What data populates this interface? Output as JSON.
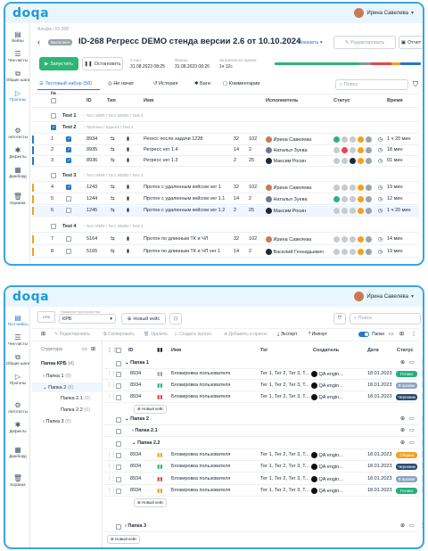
{
  "s1": {
    "logo": "doqa",
    "user": "Ирина Савелева",
    "sidebar": [
      "Бейзы",
      "Чек-листы",
      "Общие шаги",
      "Прогоны",
      "Автотесты",
      "Дефекты",
      "Дашборд",
      "Корзина"
    ],
    "breadcrumb": "Альфа / ID-268",
    "status": "Выполнен",
    "title": "ID-268 Регресс DEMO стенда версии 2.6 от 10.10.2024",
    "show_label": "Показать",
    "edit_label": "Редактировать",
    "report_label": "Отчет",
    "run_label": "Запустить",
    "stop_label": "Остановить",
    "start_label": "Старт:",
    "start_val": "31.08.2023 08:25",
    "finish_label": "Финиш:",
    "finish_val": "31.08.2023 08:26",
    "spent_label": "Затраченное время:",
    "spent_val": "1ч 12с",
    "tabs": [
      "Тестовый набор (58)",
      "Не начат",
      "История",
      "Баги",
      "Комментарии"
    ],
    "search_ph": "Поиск",
    "headers": {
      "num": "№",
      "id": "ID",
      "type": "Тип",
      "name": "Имя",
      "exec": "Исполнитель",
      "status": "Статус",
      "time": "Время"
    },
    "groups": [
      {
        "label": "Test 1",
        "sub": "Тест ИМЯ / Тест ИМЯ2 / Test 3"
      },
      {
        "label": "Test 2",
        "sub": "Прогоны / Space1 / Test 2"
      },
      {
        "label": "Test 3",
        "sub": "Тест ИМЯ / Тест ИМЯ2 / Test 3"
      },
      {
        "label": "Test 4",
        "sub": "Тест ИМЯ / Тест ИМЯ2 / Test 3"
      }
    ],
    "rows": [
      {
        "n": "1",
        "id": "8934",
        "name": "Регесс после задачи 1228",
        "a": "32",
        "b": "102",
        "exec": "Ирина Савелева",
        "time": "1 ч 20 мин"
      },
      {
        "n": "2",
        "id": "8935",
        "name": "Регресс ver 1.4",
        "a": "14",
        "b": "2",
        "exec": "Наталья Зуева",
        "time": "18 мин"
      },
      {
        "n": "3",
        "id": "8936",
        "name": "Регресс ver 1.3",
        "a": "2",
        "b": "25",
        "exec": "Максим Росин",
        "time": "01 мин"
      },
      {
        "n": "4",
        "id": "1243",
        "name": "Протон с удаленным кейсом ver 1",
        "a": "32",
        "b": "102",
        "exec": "Ирина Савелева",
        "time": "19 мин"
      },
      {
        "n": "5",
        "id": "1244",
        "name": "Протон с удаленным кейсом ver 1.1",
        "a": "14",
        "b": "2",
        "exec": "Наталья Зуева",
        "time": "12 мин"
      },
      {
        "n": "6",
        "id": "1245",
        "name": "Протон с удаленным кейсом ver 1.2",
        "a": "2",
        "b": "25",
        "exec": "Максим Росин",
        "time": "1 ч 20 мин"
      },
      {
        "n": "7",
        "id": "5164",
        "name": "Протон по длинным ТК и ЧЛ",
        "a": "32",
        "b": "102",
        "exec": "Ирина Савелева",
        "time": "14 мин"
      },
      {
        "n": "8",
        "id": "5165",
        "name": "Протон по длинным ТК и ЧЛ ver 1",
        "a": "14",
        "b": "2",
        "exec": "Василий Геннадьевич",
        "time": "19 мин"
      }
    ]
  },
  "s2": {
    "logo": "doqa",
    "user": "Ирина Савелева",
    "sidebar": [
      "Тест-кейсы",
      "Чек-листы",
      "Общие шаги",
      "Прогоны",
      "Автотесты",
      "Дефекты",
      "Дашборд",
      "Корзина"
    ],
    "project_hint": "Название пространства",
    "project": "КРБ",
    "new_case": "Новый кейс",
    "search_ph": "Поиск",
    "toolbar": [
      "Редактировать",
      "Скопировать",
      "Удалить",
      "Создать прогон",
      "Добавить в прогон",
      "Экспорт",
      "Импорт"
    ],
    "folders_toggle": "Папки",
    "structure": "Структура",
    "tree": [
      {
        "label": "Папка КРБ",
        "count": "(4)"
      },
      {
        "label": "Папка 1",
        "count": "(8)"
      },
      {
        "label": "Папка 2",
        "count": "(8)"
      },
      {
        "label": "Папка 2.1",
        "count": "(0)"
      },
      {
        "label": "Папка 2.2",
        "count": "(0)"
      },
      {
        "label": "Папка 3",
        "count": "(8)"
      }
    ],
    "headers": {
      "id": "ID",
      "name": "Имя",
      "tag": "Тег",
      "creator": "Создатель",
      "date": "Дата",
      "status": "Статус"
    },
    "folders": [
      "Папка 1",
      "Папка 2",
      "Папка 2.1",
      "Папка 2.2",
      "Папка 3"
    ],
    "new_case_small": "Новый кейс",
    "rows": [
      {
        "id": "8934",
        "name": "Блокировка пользователя",
        "tag": "Тег 1, Тег 2, Тег 3, Т...",
        "creator": "QA engin...",
        "date": "18.01.2023",
        "status": "Готово",
        "color": "#22b07d"
      },
      {
        "id": "8934",
        "name": "Блокировка пользователя",
        "tag": "Тег 1, Тег 2, Тег 3, Т...",
        "creator": "QA engin...",
        "date": "18.01.2023",
        "status": "В архиве",
        "color": "#8ea3c6"
      },
      {
        "id": "8934",
        "name": "Блокировка пользователя",
        "tag": "Тег 1, Тег 2, Тег 3, Т...",
        "creator": "QA engin...",
        "date": "18.01.2023",
        "status": "Черновик",
        "color": "#2c4a6e"
      },
      {
        "id": "8934",
        "name": "Блокировка пользователя",
        "tag": "Тег 1, Тег 2, Тег 3, Т...",
        "creator": "QA engin...",
        "date": "18.01.2023",
        "status": "Сборка",
        "color": "#f3a11c"
      },
      {
        "id": "8934",
        "name": "Блокировка пользователя",
        "tag": "Тег 1, Тег 2, Тег 3, Т...",
        "creator": "QA engin...",
        "date": "18.01.2023",
        "status": "Черновик",
        "color": "#2c4a6e"
      },
      {
        "id": "8934",
        "name": "Блокировка пользователя",
        "tag": "Тег 1, Тег 2, Тег 3, Т...",
        "creator": "QA engin...",
        "date": "18.01.2023",
        "status": "В архиве",
        "color": "#8ea3c6"
      },
      {
        "id": "8934",
        "name": "Блокировка пользователя",
        "tag": "Тег 1, Тег 2, Тег 3, Т...",
        "creator": "QA engin...",
        "date": "18.01.2023",
        "status": "Готово",
        "color": "#22b07d"
      }
    ]
  }
}
